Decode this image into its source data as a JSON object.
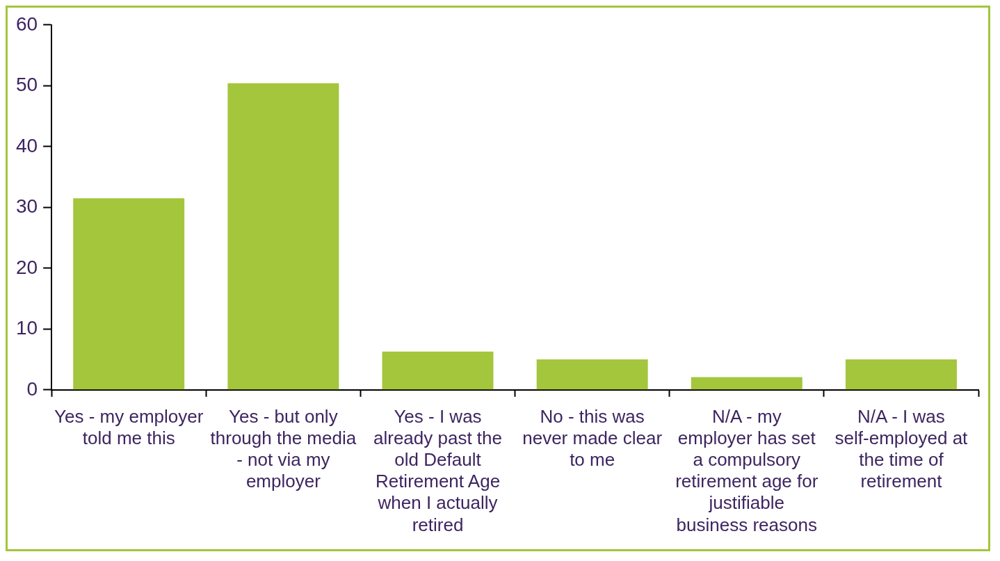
{
  "chart_data": {
    "type": "bar",
    "categories": [
      "Yes - my employer told me this",
      "Yes - but only through the media - not via my employer",
      "Yes - I was already past the old Default Retirement Age when I actually retired",
      "No - this was never made clear to me",
      "N/A - my employer has set a compulsory retirement age for justifiable business reasons",
      "N/A - I was self-employed at the time of retirement"
    ],
    "values": [
      31.5,
      50.4,
      6.3,
      5,
      2.1,
      5
    ],
    "color": "#a3c63c",
    "ylim": [
      0,
      60
    ],
    "yticks": [
      0,
      10,
      20,
      30,
      40,
      50,
      60
    ],
    "grid": false,
    "legend": false
  }
}
